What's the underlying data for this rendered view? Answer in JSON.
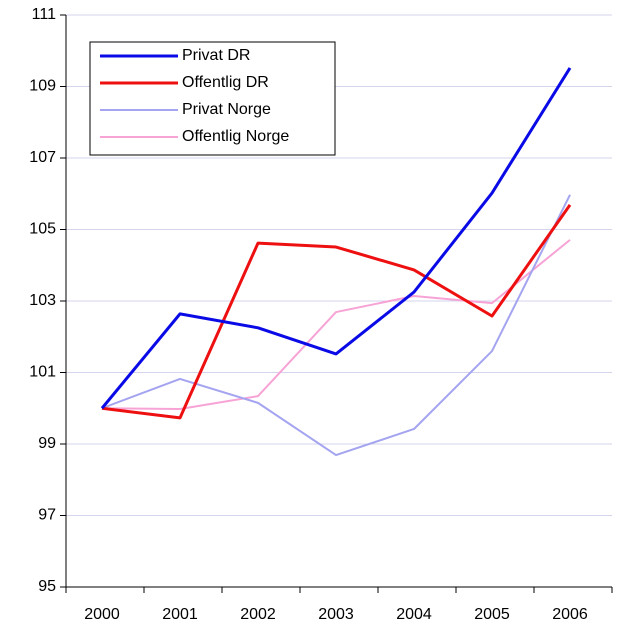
{
  "chart_data": {
    "type": "line",
    "categories": [
      "2000",
      "2001",
      "2002",
      "2003",
      "2004",
      "2005",
      "2006"
    ],
    "series": [
      {
        "name": "Privat DR",
        "color": "#0a0ae6",
        "values": [
          100,
          102.64,
          102.25,
          101.52,
          103.25,
          106.02,
          109.52
        ]
      },
      {
        "name": "Offentlig DR",
        "color": "#ee1010",
        "values": [
          100,
          99.73,
          104.62,
          104.51,
          103.87,
          102.58,
          105.69
        ]
      },
      {
        "name": "Privat Norge",
        "color": "#a4a4f0",
        "values": [
          100,
          100.82,
          100.15,
          98.69,
          99.42,
          101.6,
          105.97
        ]
      },
      {
        "name": "Offentlig Norge",
        "color": "#f7a3d6",
        "values": [
          100,
          99.98,
          100.34,
          102.69,
          103.14,
          102.94,
          104.71
        ]
      }
    ],
    "ylim": [
      95,
      111
    ],
    "yticks": [
      95,
      97,
      99,
      101,
      103,
      105,
      107,
      109,
      111
    ],
    "grid": true
  }
}
